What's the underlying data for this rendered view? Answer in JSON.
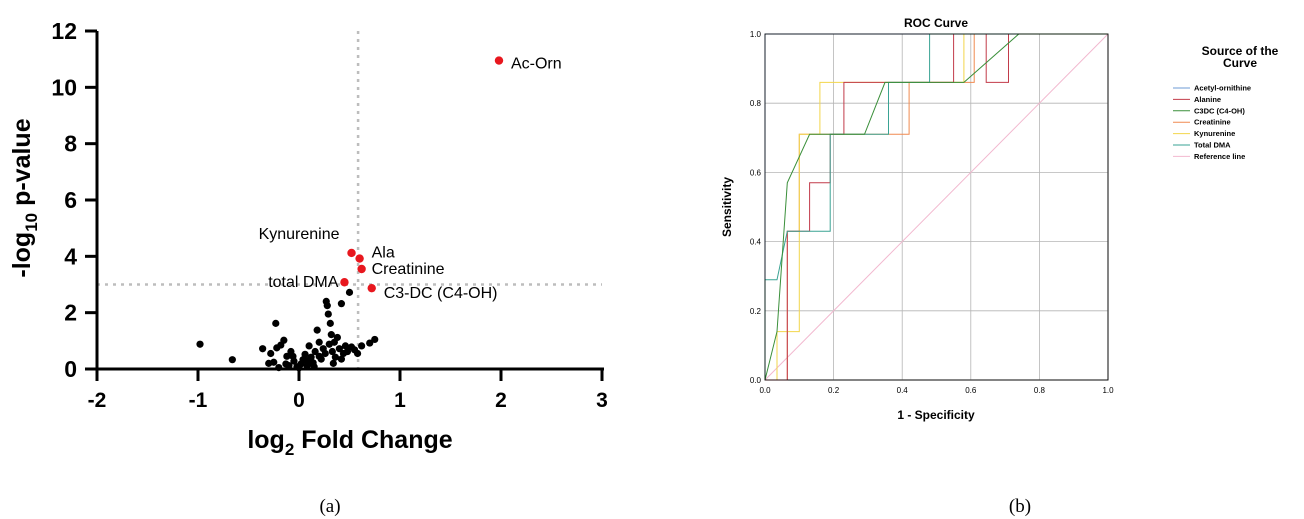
{
  "panel_labels": [
    "(a)",
    "(b)"
  ],
  "chart_data": [
    {
      "type": "scatter",
      "title": "",
      "xlabel": "log2 Fold Change",
      "xlabel_parts": {
        "pre": "log",
        "sub": "2",
        "post": " Fold Change"
      },
      "ylabel": "-log10 p-value",
      "ylabel_parts": {
        "pre": "-log",
        "sub": "10",
        "post": " p-value"
      },
      "xlim": [
        -2,
        3
      ],
      "ylim": [
        0,
        12
      ],
      "xticks": [
        -2,
        -1,
        0,
        1,
        2,
        3
      ],
      "yticks": [
        0,
        2,
        4,
        6,
        8,
        10,
        12
      ],
      "threshold_x": 0.585,
      "threshold_y": 3,
      "colors": {
        "significant": "#e8171e",
        "other": "#000000",
        "threshold": "#bdbdbd"
      },
      "highlighted": [
        {
          "label": "Ac-Orn",
          "x": 1.98,
          "y": 10.95
        },
        {
          "label": "Kynurenine",
          "x": 0.52,
          "y": 4.12
        },
        {
          "label": "Ala",
          "x": 0.6,
          "y": 3.92
        },
        {
          "label": "Creatinine",
          "x": 0.62,
          "y": 3.55
        },
        {
          "label": "total DMA",
          "x": 0.45,
          "y": 3.08
        },
        {
          "label": "C3-DC (C4-OH)",
          "x": 0.72,
          "y": 2.87
        }
      ],
      "points": [
        [
          -0.98,
          0.88
        ],
        [
          -0.66,
          0.33
        ],
        [
          -0.36,
          0.72
        ],
        [
          -0.28,
          0.55
        ],
        [
          -0.25,
          0.24
        ],
        [
          -0.23,
          1.62
        ],
        [
          -0.2,
          0.05
        ],
        [
          -0.18,
          0.85
        ],
        [
          -0.15,
          1.02
        ],
        [
          -0.12,
          0.45
        ],
        [
          -0.1,
          0.12
        ],
        [
          -0.08,
          0.62
        ],
        [
          -0.05,
          0.28
        ],
        [
          -0.02,
          0.08
        ],
        [
          0.0,
          0.04
        ],
        [
          0.02,
          0.18
        ],
        [
          0.04,
          0.33
        ],
        [
          0.06,
          0.52
        ],
        [
          0.08,
          0.12
        ],
        [
          0.1,
          0.82
        ],
        [
          0.12,
          0.42
        ],
        [
          0.14,
          0.22
        ],
        [
          0.16,
          0.62
        ],
        [
          0.18,
          1.38
        ],
        [
          0.2,
          0.95
        ],
        [
          0.22,
          0.35
        ],
        [
          0.24,
          0.72
        ],
        [
          0.26,
          0.55
        ],
        [
          0.27,
          2.4
        ],
        [
          0.28,
          2.25
        ],
        [
          0.29,
          1.95
        ],
        [
          0.3,
          0.88
        ],
        [
          0.31,
          1.62
        ],
        [
          0.32,
          1.22
        ],
        [
          0.33,
          0.62
        ],
        [
          0.35,
          0.95
        ],
        [
          0.36,
          0.42
        ],
        [
          0.38,
          1.12
        ],
        [
          0.4,
          0.72
        ],
        [
          0.42,
          2.32
        ],
        [
          0.44,
          0.55
        ],
        [
          0.46,
          0.82
        ],
        [
          0.48,
          0.62
        ],
        [
          0.5,
          2.72
        ],
        [
          0.52,
          0.78
        ],
        [
          0.55,
          0.68
        ],
        [
          0.58,
          0.55
        ],
        [
          0.62,
          0.82
        ],
        [
          0.7,
          0.92
        ],
        [
          0.75,
          1.05
        ],
        [
          -0.3,
          0.2
        ],
        [
          -0.13,
          0.18
        ],
        [
          0.08,
          0.3
        ],
        [
          0.15,
          0.08
        ],
        [
          0.34,
          0.2
        ],
        [
          -0.06,
          0.45
        ],
        [
          0.2,
          0.45
        ],
        [
          0.42,
          0.35
        ],
        [
          -0.22,
          0.75
        ],
        [
          0.1,
          0.2
        ]
      ]
    },
    {
      "type": "line",
      "title": "ROC Curve",
      "xlabel": "1 - Specificity",
      "ylabel": "Sensitivity",
      "xlim": [
        0,
        1
      ],
      "ylim": [
        0,
        1
      ],
      "xticks": [
        "0.0",
        "0.2",
        "0.4",
        "0.6",
        "0.8",
        "1.0"
      ],
      "yticks": [
        "0.0",
        "0.2",
        "0.4",
        "0.6",
        "0.8",
        "1.0"
      ],
      "grid": true,
      "legend_title": "Source of the Curve",
      "legend_title_lines": [
        "Source of the",
        "Curve"
      ],
      "legend_position": "right",
      "series": [
        {
          "name": "Acetyl-ornithine",
          "color": "#6e9bd6",
          "x": [
            0,
            0,
            1
          ],
          "y": [
            0,
            1,
            1
          ]
        },
        {
          "name": "Alanine",
          "color": "#c23b4a",
          "x": [
            0,
            0.065,
            0.065,
            0.13,
            0.13,
            0.19,
            0.19,
            0.23,
            0.23,
            0.55,
            0.55,
            0.645,
            0.645,
            0.71,
            0.71,
            1
          ],
          "y": [
            0,
            0,
            0.43,
            0.43,
            0.57,
            0.57,
            0.71,
            0.71,
            0.86,
            0.86,
            1,
            1,
            0.86,
            0.86,
            1,
            1
          ]
        },
        {
          "name": "C3DC (C4-OH)",
          "color": "#3a8f3a",
          "x": [
            0,
            0.035,
            0.065,
            0.13,
            0.29,
            0.35,
            0.58,
            0.74,
            1
          ],
          "y": [
            0,
            0.14,
            0.57,
            0.71,
            0.71,
            0.86,
            0.86,
            1,
            1
          ]
        },
        {
          "name": "Creatinine",
          "color": "#f08a50",
          "x": [
            0,
            0.065,
            0.065,
            0.1,
            0.1,
            0.42,
            0.42,
            0.61,
            0.61,
            1
          ],
          "y": [
            0,
            0,
            0.43,
            0.43,
            0.71,
            0.71,
            0.86,
            0.86,
            1,
            1
          ]
        },
        {
          "name": "Kynurenine",
          "color": "#f2d64b",
          "x": [
            0,
            0.035,
            0.035,
            0.1,
            0.1,
            0.16,
            0.16,
            0.39,
            0.39,
            0.58,
            0.58,
            1
          ],
          "y": [
            0,
            0,
            0.14,
            0.14,
            0.71,
            0.71,
            0.86,
            0.86,
            0.86,
            0.86,
            1,
            1
          ]
        },
        {
          "name": "Total DMA",
          "color": "#3aa394",
          "x": [
            0,
            0,
            0.035,
            0.065,
            0.1,
            0.19,
            0.19,
            0.36,
            0.36,
            0.48,
            0.48,
            1
          ],
          "y": [
            0,
            0.29,
            0.29,
            0.43,
            0.43,
            0.43,
            0.71,
            0.71,
            0.86,
            0.86,
            1,
            1
          ]
        },
        {
          "name": "Reference line",
          "color": "#f2b8cf",
          "x": [
            0,
            1
          ],
          "y": [
            0,
            1
          ]
        }
      ]
    }
  ]
}
